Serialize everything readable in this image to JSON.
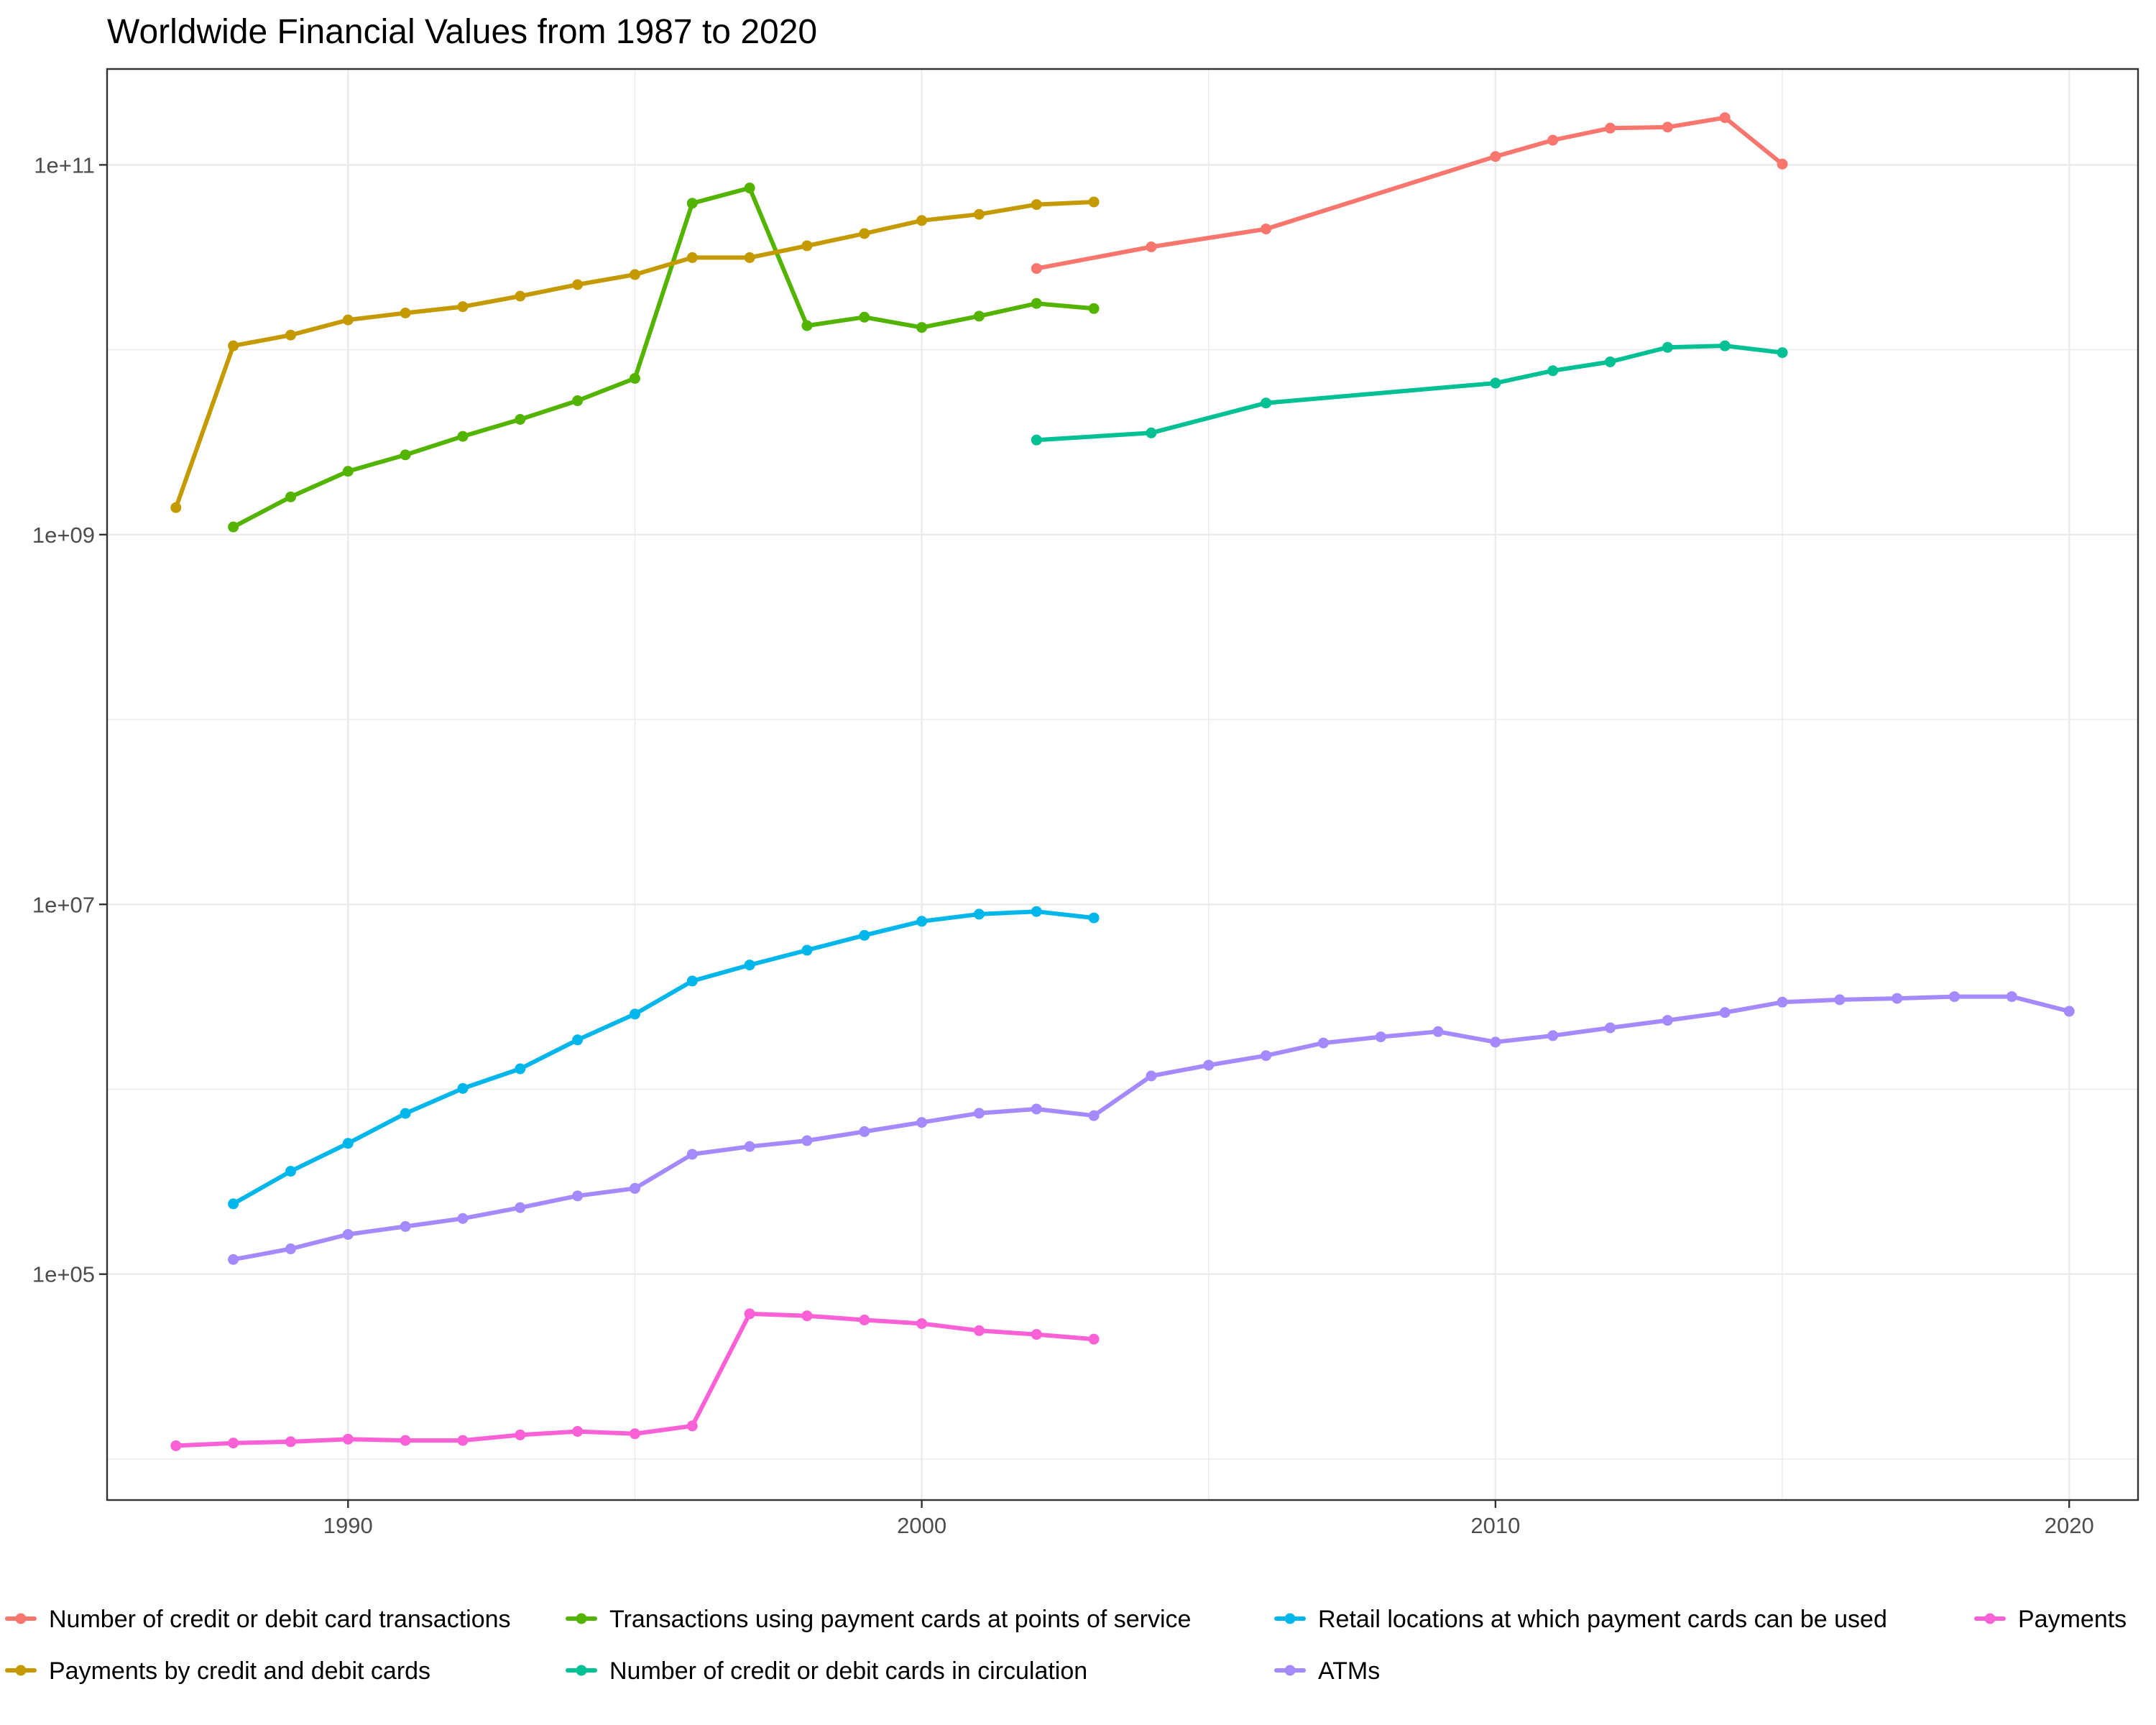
{
  "chart_data": {
    "type": "line",
    "title": "Worldwide Financial Values from 1987 to 2020",
    "xlabel": "",
    "ylabel": "",
    "y_scale": "log10",
    "xlim": [
      1985.8,
      2021.2
    ],
    "ylim": [
      6000,
      330000000000
    ],
    "x_ticks": [
      1990,
      2000,
      2010,
      2020
    ],
    "x_tick_labels": [
      "1990",
      "2000",
      "2010",
      "2020"
    ],
    "y_ticks": [
      100000,
      10000000,
      1000000000,
      100000000000
    ],
    "y_tick_labels": [
      "1e+05",
      "1e+07",
      "1e+09",
      "1e+11"
    ],
    "grid": true,
    "legend_position": "bottom",
    "legend_rows": [
      [
        "Number of credit or debit card transactions",
        "Transactions using payment cards at points of service",
        "Retail locations at which payment cards can be used",
        "Payments"
      ],
      [
        "Payments by credit and debit cards",
        "Number of credit or debit cards in circulation",
        "ATMs"
      ]
    ],
    "series": [
      {
        "name": "Number of credit or debit card transactions",
        "color": "#F8766D",
        "x": [
          2002,
          2004,
          2006,
          2010,
          2011,
          2012,
          2013,
          2014,
          2015
        ],
        "y": [
          27500000000,
          36000000000,
          45000000000,
          111000000000,
          136000000000,
          158000000000,
          160000000000,
          180000000000,
          101000000000
        ]
      },
      {
        "name": "Transactions using payment cards at points of service",
        "color": "#53B400",
        "x": [
          1988,
          1989,
          1990,
          1991,
          1992,
          1993,
          1994,
          1995,
          1996,
          1997,
          1998,
          1999,
          2000,
          2001,
          2002,
          2003
        ],
        "y": [
          1100000000,
          1600000000,
          2200000000,
          2700000000,
          3400000000,
          4200000000,
          5300000000,
          7000000000,
          62000000000,
          75000000000,
          13500000000,
          15000000000,
          13200000000,
          15200000000,
          17800000000,
          16700000000
        ]
      },
      {
        "name": "Retail locations at which payment cards can be used",
        "color": "#00B6EB",
        "x": [
          1988,
          1989,
          1990,
          1991,
          1992,
          1993,
          1994,
          1995,
          1996,
          1997,
          1998,
          1999,
          2000,
          2001,
          2002,
          2003
        ],
        "y": [
          240000,
          360000,
          510000,
          740000,
          1010000,
          1290000,
          1850000,
          2550000,
          3850000,
          4700000,
          5650000,
          6800000,
          8100000,
          8850000,
          9150000,
          8450000
        ]
      },
      {
        "name": "Payments",
        "color": "#FB61D7",
        "x": [
          1987,
          1988,
          1989,
          1990,
          1991,
          1992,
          1993,
          1994,
          1995,
          1996,
          1997,
          1998,
          1999,
          2000,
          2001,
          2002,
          2003
        ],
        "y": [
          11800,
          12200,
          12400,
          12800,
          12600,
          12600,
          13500,
          14100,
          13700,
          15100,
          61000,
          59500,
          56500,
          54000,
          49500,
          47200,
          44500
        ]
      },
      {
        "name": "Payments by credit and debit cards",
        "color": "#C49A00",
        "x": [
          1987,
          1988,
          1989,
          1990,
          1991,
          1992,
          1993,
          1994,
          1995,
          1996,
          1997,
          1998,
          1999,
          2000,
          2001,
          2002,
          2003
        ],
        "y": [
          1400000000,
          10500000000,
          12000000000,
          14500000000,
          15800000000,
          17100000000,
          19500000000,
          22500000000,
          25500000000,
          31500000000,
          31500000000,
          36500000000,
          42500000000,
          50000000000,
          54000000000,
          61000000000,
          63000000000
        ]
      },
      {
        "name": "Number of credit or debit cards in circulation",
        "color": "#00C094",
        "x": [
          2002,
          2004,
          2006,
          2010,
          2011,
          2012,
          2013,
          2014,
          2015
        ],
        "y": [
          3250000000,
          3550000000,
          5150000000,
          6600000000,
          7700000000,
          8600000000,
          10300000000,
          10500000000,
          9650000000
        ]
      },
      {
        "name": "ATMs",
        "color": "#A58AFF",
        "x": [
          1988,
          1989,
          1990,
          1991,
          1992,
          1993,
          1994,
          1995,
          1996,
          1997,
          1998,
          1999,
          2000,
          2001,
          2002,
          2003,
          2004,
          2005,
          2006,
          2007,
          2008,
          2009,
          2010,
          2011,
          2012,
          2013,
          2014,
          2015,
          2016,
          2017,
          2018,
          2019,
          2020
        ],
        "y": [
          120000,
          137000,
          164000,
          181000,
          200000,
          229000,
          265000,
          291000,
          445000,
          490000,
          527000,
          590000,
          662000,
          742000,
          782000,
          720000,
          1180000,
          1350000,
          1520000,
          1780000,
          1920000,
          2050000,
          1800000,
          1950000,
          2150000,
          2360000,
          2600000,
          2960000,
          3050000,
          3100000,
          3170000,
          3170000,
          2640000
        ]
      }
    ]
  }
}
